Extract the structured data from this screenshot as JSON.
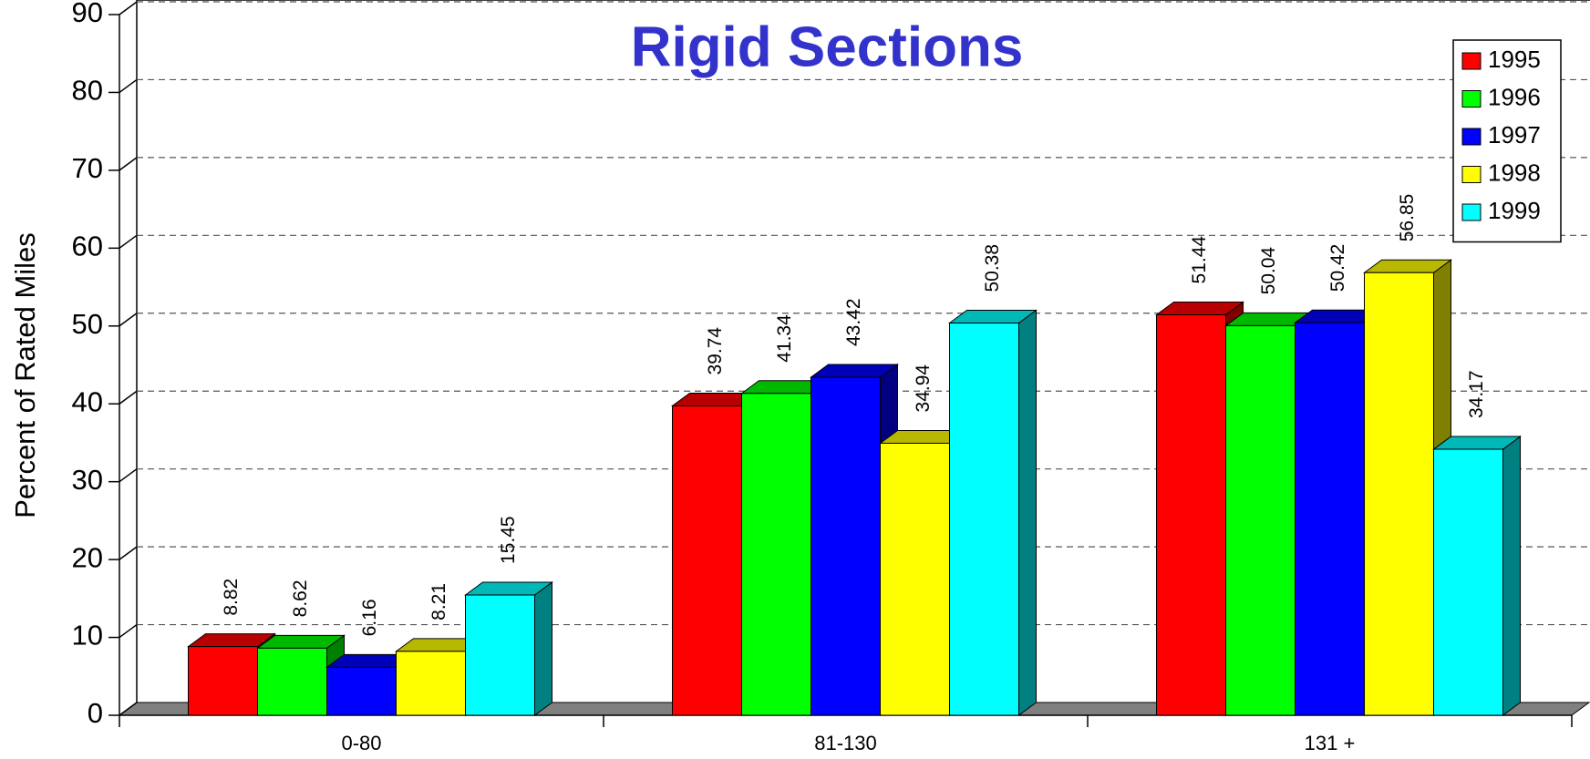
{
  "chart_data": {
    "type": "bar",
    "title": "Rigid Sections",
    "y_label": "Percent of Rated Miles",
    "categories": [
      "0-80",
      "81-130",
      "131 +"
    ],
    "series": [
      {
        "name": "1995",
        "color": "#ff0000",
        "values": [
          8.82,
          39.74,
          51.44
        ]
      },
      {
        "name": "1996",
        "color": "#00ff00",
        "values": [
          8.62,
          41.34,
          50.04
        ]
      },
      {
        "name": "1997",
        "color": "#0000ff",
        "values": [
          6.16,
          43.42,
          50.42
        ]
      },
      {
        "name": "1998",
        "color": "#ffff00",
        "values": [
          8.21,
          34.94,
          56.85
        ]
      },
      {
        "name": "1999",
        "color": "#00ffff",
        "values": [
          15.45,
          50.38,
          34.17
        ]
      }
    ],
    "ylim": [
      0,
      90
    ],
    "yticks": [
      0,
      10,
      20,
      30,
      40,
      50,
      60,
      70,
      80,
      90
    ],
    "grid": true,
    "legend": "upper right"
  }
}
